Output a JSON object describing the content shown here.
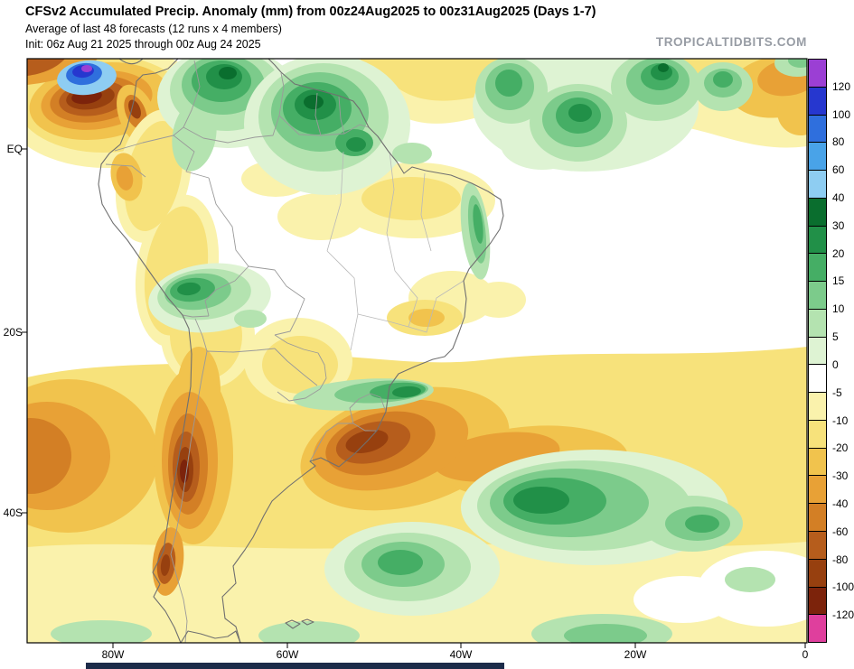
{
  "header": {
    "title": "CFSv2 Accumulated Precip. Anomaly (mm) from 00z24Aug2025 to 00z31Aug2025 (Days 1-7)",
    "subtitle": "Average of last 48 forecasts (12 runs x 4 members)",
    "init_line": "Init: 06z Aug 21 2025 through 00z Aug 24 2025",
    "watermark": "TROPICALTIDBITS.COM"
  },
  "axes": {
    "lat": [
      "EQ",
      "20S",
      "40S"
    ],
    "lon": [
      "80W",
      "60W",
      "40W",
      "20W",
      "0"
    ]
  },
  "colorbar": {
    "unit": "mm",
    "labels": [
      "120",
      "100",
      "80",
      "60",
      "40",
      "30",
      "20",
      "15",
      "10",
      "5",
      "0",
      "-5",
      "-10",
      "-20",
      "-30",
      "-40",
      "-60",
      "-80",
      "-100",
      "-120"
    ],
    "segments": [
      "purple",
      "dblue",
      "mblue",
      "lblue",
      "paleblue",
      "dgreen",
      "green",
      "mgreen",
      "lgreen",
      "pgreen",
      "vpgreen",
      "white",
      "pyellow",
      "yellow",
      "gold",
      "orange",
      "dorange",
      "brown",
      "rbrown",
      "maroon",
      "pink"
    ]
  },
  "palette": {
    "purple": "#9b3fd4",
    "dblue": "#2637cf",
    "mblue": "#2f6fdd",
    "lblue": "#49a3e8",
    "paleblue": "#8ecdf2",
    "dgreen": "#0a6e2e",
    "green": "#219048",
    "mgreen": "#45ae65",
    "lgreen": "#7ccb8b",
    "pgreen": "#b4e3b0",
    "vpgreen": "#def3d3",
    "white": "#ffffff",
    "pyellow": "#faf2ac",
    "yellow": "#f7e27b",
    "gold": "#f1c34d",
    "orange": "#e8a136",
    "dorange": "#d37f25",
    "brown": "#b65d1c",
    "rbrown": "#97400f",
    "maroon": "#7c230b",
    "pink": "#df3f9d"
  },
  "legend_semantics": {
    "positive_anomaly": "greens to blues/purple (wetter than normal)",
    "negative_anomaly": "yellows to browns/pink (drier than normal)"
  },
  "footer": {
    "bar_color": "#1c2b49"
  }
}
